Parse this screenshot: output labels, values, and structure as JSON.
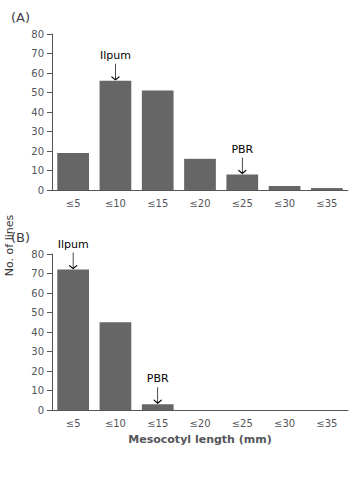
{
  "chart_data": [
    {
      "type": "bar",
      "title": "(A)",
      "categories": [
        "≤5",
        "≤10",
        "≤15",
        "≤20",
        "≤25",
        "≤30",
        "≤35"
      ],
      "values": [
        19,
        56,
        51,
        16,
        8,
        2,
        1
      ],
      "color": "#666666",
      "ylim": [
        0,
        80
      ],
      "yticks": [
        0,
        10,
        20,
        30,
        40,
        50,
        60,
        70,
        80
      ],
      "ylabel": "No. of lines",
      "grid": false,
      "annotations": [
        {
          "text": "Ilpum",
          "x": "≤10",
          "y": 56
        },
        {
          "text": "PBR",
          "x": "≤25",
          "y": 8
        }
      ]
    },
    {
      "type": "bar",
      "title": "(B)",
      "categories": [
        "≤5",
        "≤10",
        "≤15",
        "≤20",
        "≤25",
        "≤30",
        "≤35"
      ],
      "values": [
        72,
        45,
        3,
        0,
        0,
        0,
        0
      ],
      "color": "#666666",
      "ylim": [
        0,
        80
      ],
      "yticks": [
        0,
        10,
        20,
        30,
        40,
        50,
        60,
        70,
        80
      ],
      "xlabel": "Mesocotyl length (mm)",
      "grid": false,
      "annotations": [
        {
          "text": "Ilpum",
          "x": "≤5",
          "y": 72
        },
        {
          "text": "PBR",
          "x": "≤15",
          "y": 3
        }
      ]
    }
  ]
}
